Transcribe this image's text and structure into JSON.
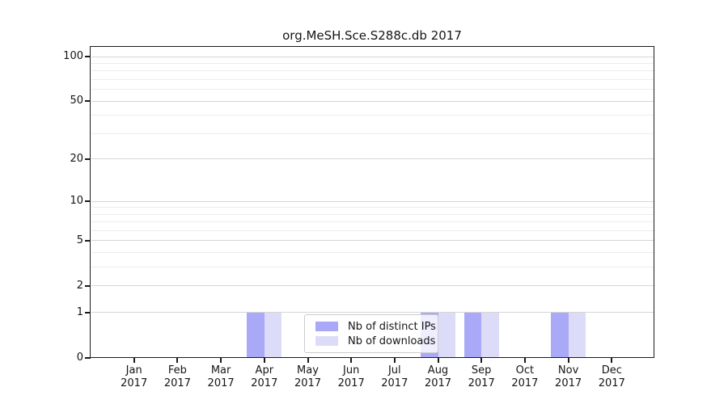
{
  "chart_data": {
    "type": "bar",
    "title": "org.MeSH.Sce.S288c.db 2017",
    "categories": [
      "Jan",
      "Feb",
      "Mar",
      "Apr",
      "May",
      "Jun",
      "Jul",
      "Aug",
      "Sep",
      "Oct",
      "Nov",
      "Dec"
    ],
    "year": "2017",
    "series": [
      {
        "name": "Nb of distinct IPs",
        "color": "#a9a9f8",
        "values": [
          0,
          0,
          0,
          1,
          0,
          0,
          0,
          1,
          1,
          0,
          1,
          0
        ]
      },
      {
        "name": "Nb of downloads",
        "color": "#dcdcf8",
        "values": [
          0,
          0,
          0,
          1,
          0,
          0,
          0,
          1,
          1,
          0,
          1,
          0
        ]
      }
    ],
    "xlabel": "",
    "ylabel": "",
    "ylim": [
      0,
      100
    ],
    "y_axis": {
      "scale": "log1p",
      "tick_values": [
        0,
        1,
        2,
        5,
        10,
        20,
        50,
        100
      ],
      "tick_labels": [
        "0",
        "1",
        "2",
        "5",
        "10",
        "20",
        "50",
        "100"
      ],
      "minor_gridline_values": [
        3,
        4,
        6,
        7,
        8,
        9,
        30,
        40,
        60,
        70,
        80,
        90
      ]
    },
    "grid": "horizontal, major and minor, on",
    "legend_position": "inside lower center-left"
  },
  "colors": {
    "bar_distinct_ips": "#a9a9f8",
    "bar_downloads": "#dcdcf8",
    "major_gridline": "#d6d6d6",
    "minor_gridline": "#ececec",
    "spine": "#1a1a1a",
    "text": "#151515",
    "legend_border": "#cccccc"
  }
}
